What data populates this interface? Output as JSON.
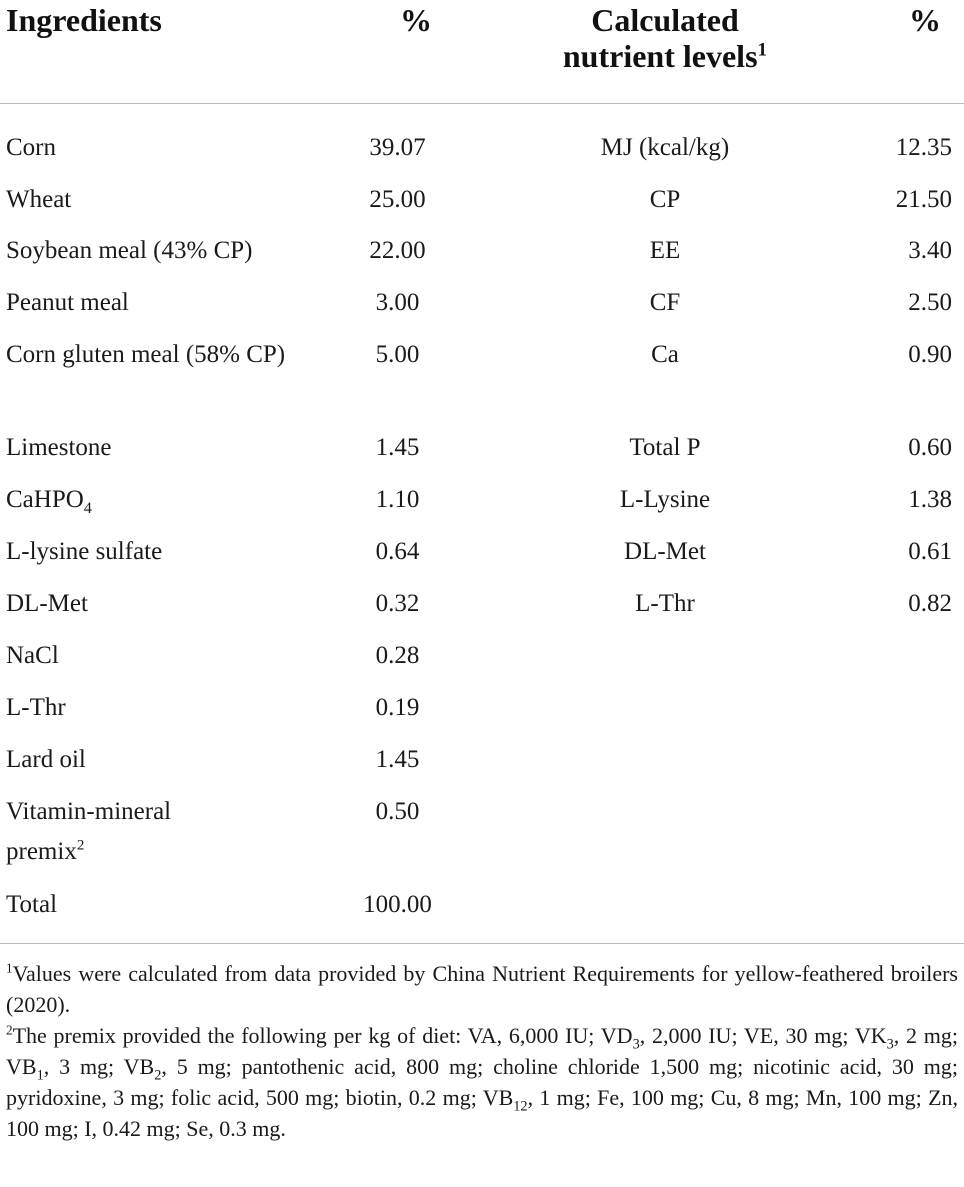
{
  "header": {
    "ingredients": "Ingredients",
    "percent_left": "%",
    "calculated_line1": "Calculated",
    "calculated_line2": "nutrient levels",
    "calculated_sup": "1",
    "percent_right": "%"
  },
  "ingredients": [
    {
      "name": "Corn",
      "value": "39.07"
    },
    {
      "name": "Wheat",
      "value": "25.00"
    },
    {
      "name": "Soybean meal (43% CP)",
      "value": "22.00"
    },
    {
      "name": "Peanut meal",
      "value": "3.00"
    },
    {
      "name": "Corn gluten meal (58% CP)",
      "value": "5.00"
    },
    {
      "name": "Limestone",
      "value": "1.45"
    },
    {
      "name_main": "CaHPO",
      "name_sub": "4",
      "value": "1.10"
    },
    {
      "name": "L-lysine sulfate",
      "value": "0.64"
    },
    {
      "name": "DL-Met",
      "value": "0.32"
    },
    {
      "name": "NaCl",
      "value": "0.28"
    },
    {
      "name": "L-Thr",
      "value": "0.19"
    },
    {
      "name": "Lard oil",
      "value": "1.45"
    },
    {
      "name_line1": "Vitamin-mineral",
      "name_line2": "premix",
      "name_sup": "2",
      "value": "0.50"
    },
    {
      "name": "Total",
      "value": "100.00"
    }
  ],
  "nutrients": [
    {
      "name": "MJ (kcal/kg)",
      "value": "12.35"
    },
    {
      "name": "CP",
      "value": "21.50"
    },
    {
      "name": "EE",
      "value": "3.40"
    },
    {
      "name": "CF",
      "value": "2.50"
    },
    {
      "name": "Ca",
      "value": "0.90"
    },
    {
      "name": "Total P",
      "value": "0.60"
    },
    {
      "name": "L-Lysine",
      "value": "1.38"
    },
    {
      "name": "DL-Met",
      "value": "0.61"
    },
    {
      "name": "L-Thr",
      "value": "0.82"
    }
  ],
  "footnotes": {
    "note1_marker": "1",
    "note1_text": "Values were calculated from data provided by China Nutrient Requirements for yellow-feathered broilers (2020).",
    "note2_marker": "2",
    "note2_parts": {
      "a": "The premix provided the following per kg of diet: VA, 6,000 IU; VD",
      "a_sub": "3",
      "b": ", 2,000 IU; VE, 30 mg; VK",
      "b_sub": "3",
      "c": ", 2 mg; VB",
      "c_sub": "1",
      "d": ", 3 mg; VB",
      "d_sub": "2",
      "e": ", 5 mg; pantothenic acid, 800 mg; choline chloride 1,500 mg; nicotinic acid, 30 mg; pyridoxine, 3 mg; folic acid, 500 mg; biotin, 0.2 mg; VB",
      "e_sub": "12",
      "f": ", 1 mg; Fe, 100 mg; Cu, 8 mg; Mn, 100 mg; Zn, 100 mg; I, 0.42 mg; Se, 0.3 mg."
    }
  }
}
